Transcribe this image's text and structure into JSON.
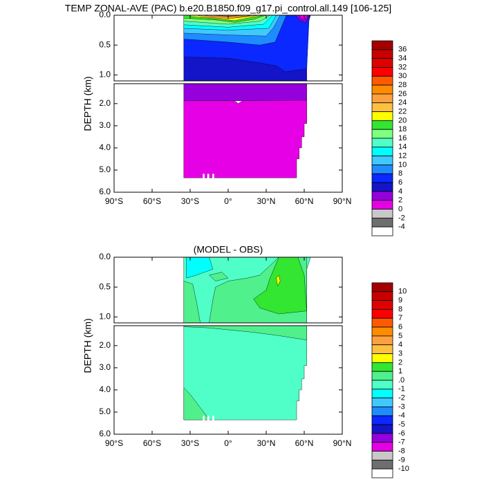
{
  "chart_data": [
    {
      "type": "contour",
      "title": "TEMP ZONAL-AVE (PAC) b.e20.B1850.f09_g17.pi_control.all.149 [106-125]",
      "ylabel": "DEPTH (km)",
      "xlim": [
        -90,
        90
      ],
      "xticks": [
        {
          "value": -90,
          "label": "90°S"
        },
        {
          "value": -60,
          "label": "60°S"
        },
        {
          "value": -30,
          "label": "30°S"
        },
        {
          "value": 0,
          "label": "0°"
        },
        {
          "value": 30,
          "label": "30°N"
        },
        {
          "value": 60,
          "label": "60°N"
        },
        {
          "value": 90,
          "label": "90°N"
        }
      ],
      "panels": [
        {
          "ylim": [
            0,
            1.1
          ],
          "yticks": [
            {
              "value": 0,
              "label": "0.0"
            },
            0.5,
            {
              "value": 1,
              "label": "1.0"
            }
          ]
        },
        {
          "ylim": [
            1.1,
            6
          ],
          "yticks": [
            {
              "value": 2,
              "label": "2.0"
            },
            {
              "value": 3,
              "label": "3.0"
            },
            {
              "value": 4,
              "label": "4.0"
            },
            {
              "value": 5,
              "label": "5.0"
            },
            {
              "value": 6,
              "label": "6.0"
            }
          ]
        }
      ],
      "colorbar": {
        "levels": [
          36,
          34,
          32,
          30,
          28,
          26,
          24,
          22,
          20,
          18,
          16,
          14,
          12,
          10,
          8,
          6,
          4,
          2,
          0,
          -2,
          -4
        ],
        "colors": [
          "#a50000",
          "#c80000",
          "#e10000",
          "#ff0000",
          "#ff5a00",
          "#ff8c00",
          "#ffa040",
          "#ffc040",
          "#ffff00",
          "#32e632",
          "#80ff80",
          "#50ffc8",
          "#00ffff",
          "#40c8ff",
          "#1e8cff",
          "#0a28ff",
          "#1414c8",
          "#9600dc",
          "#e600e6",
          "#c8c8c8",
          "#6e6e6e",
          "#ffffff"
        ]
      }
    },
    {
      "type": "contour",
      "title": "(MODEL - OBS)",
      "ylabel": "DEPTH (km)",
      "xlim": [
        -90,
        90
      ],
      "xticks": [
        {
          "value": -90,
          "label": "90°S"
        },
        {
          "value": -60,
          "label": "60°S"
        },
        {
          "value": -30,
          "label": "30°S"
        },
        {
          "value": 0,
          "label": "0°"
        },
        {
          "value": 30,
          "label": "30°N"
        },
        {
          "value": 60,
          "label": "60°N"
        },
        {
          "value": 90,
          "label": "90°N"
        }
      ],
      "panels": [
        {
          "ylim": [
            0,
            1.1
          ],
          "yticks": [
            {
              "value": 0,
              "label": "0.0"
            },
            0.5,
            {
              "value": 1,
              "label": "1.0"
            }
          ]
        },
        {
          "ylim": [
            1.1,
            6
          ],
          "yticks": [
            {
              "value": 2,
              "label": "2.0"
            },
            {
              "value": 3,
              "label": "3.0"
            },
            {
              "value": 4,
              "label": "4.0"
            },
            {
              "value": 5,
              "label": "5.0"
            },
            {
              "value": 6,
              "label": "6.0"
            }
          ]
        }
      ],
      "colorbar": {
        "levels": [
          10,
          9,
          8,
          7,
          6,
          5,
          4,
          3,
          2,
          1,
          {
            "value": 0,
            "label": ".0"
          },
          -1,
          -2,
          -3,
          -4,
          -5,
          -6,
          -7,
          -8,
          -9,
          -10
        ],
        "colors": [
          "#a50000",
          "#c80000",
          "#e10000",
          "#ff0000",
          "#ff5a00",
          "#ff8c00",
          "#ffa040",
          "#ffc040",
          "#ffff00",
          "#32e632",
          "#50f08c",
          "#50ffc8",
          "#00ffff",
          "#40c8ff",
          "#1e8cff",
          "#0a28ff",
          "#1414c8",
          "#9600dc",
          "#e600e6",
          "#c8c8c8",
          "#6e6e6e",
          "#ffffff"
        ]
      }
    }
  ]
}
